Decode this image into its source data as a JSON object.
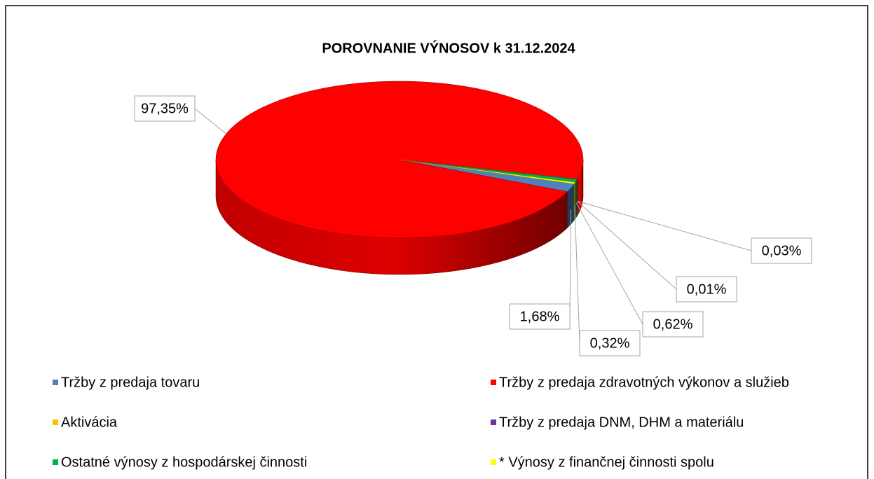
{
  "chart_data": {
    "type": "pie3d",
    "title": "POROVNANIE VÝNOSOV k 31.12.2024",
    "categories": [
      "Tržby z predaja tovaru",
      "Tržby z predaja zdravotných výkonov a služieb",
      "Aktivácia",
      "Tržby z predaja DNM, DHM a materiálu",
      "Ostatné výnosy z hospodárskej činnosti",
      "* Výnosy z finančnej činnosti spolu"
    ],
    "values": [
      1.68,
      97.35,
      0.03,
      0.01,
      0.62,
      0.32
    ],
    "value_labels": [
      "1,68%",
      "97,35%",
      "0,03%",
      "0,01%",
      "0,62%",
      "0,32%"
    ],
    "colors": [
      "#4f81bd",
      "#ff0000",
      "#ffc000",
      "#7030a0",
      "#00b050",
      "#ffff00"
    ],
    "legend": "bottom"
  }
}
